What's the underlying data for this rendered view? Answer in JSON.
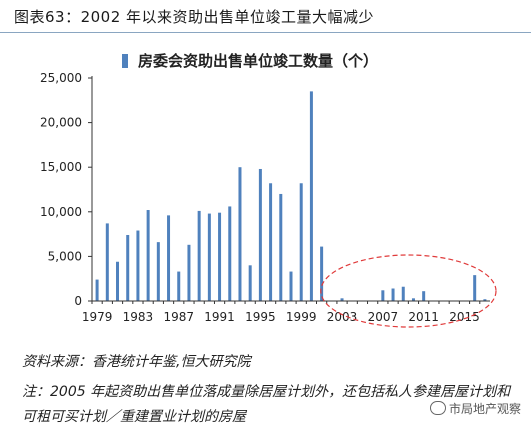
{
  "title": "图表63：2002 年以来资助出售单位竣工量大幅减少",
  "source": "资料来源：香港统计年鉴,恒大研究院",
  "note": "注：2005 年起资助出售单位落成量除居屋计划外，还包括私人参建居屋计划和可租可买计划／重建置业计划的房屋",
  "watermark": "市局地产观察",
  "colors": {
    "bar": "#4f81bd",
    "highlight": "#e03a3a"
  },
  "chart_data": {
    "type": "bar",
    "legend": "房委会资助出售单位竣工数量（个）",
    "legend_position": "top",
    "categories": [
      "1979",
      "1980",
      "1981",
      "1982",
      "1983",
      "1984",
      "1985",
      "1986",
      "1987",
      "1988",
      "1989",
      "1990",
      "1991",
      "1992",
      "1993",
      "1994",
      "1995",
      "1996",
      "1997",
      "1998",
      "1999",
      "2000",
      "2001",
      "2002",
      "2003",
      "2004",
      "2005",
      "2006",
      "2007",
      "2008",
      "2009",
      "2010",
      "2011",
      "2012",
      "2013",
      "2014",
      "2015",
      "2016",
      "2017"
    ],
    "values": [
      2400,
      8700,
      4400,
      7400,
      7900,
      10200,
      6600,
      9600,
      3300,
      6300,
      10100,
      9800,
      9900,
      10600,
      15000,
      4000,
      14800,
      13200,
      12000,
      3300,
      13200,
      23500,
      6100,
      0,
      300,
      0,
      0,
      0,
      1200,
      1400,
      1600,
      300,
      1100,
      0,
      0,
      0,
      0,
      2900,
      200
    ],
    "tick_labels": [
      "1979",
      "1983",
      "1987",
      "1991",
      "1995",
      "1999",
      "2003",
      "2007",
      "2011",
      "2015"
    ],
    "y_ticks": [
      "0",
      "5,000",
      "10,000",
      "15,000",
      "20,000",
      "25,000"
    ],
    "ylim": [
      0,
      25000
    ],
    "grid": false,
    "annotation": "dashed red ellipse highlighting 2002–2017"
  }
}
